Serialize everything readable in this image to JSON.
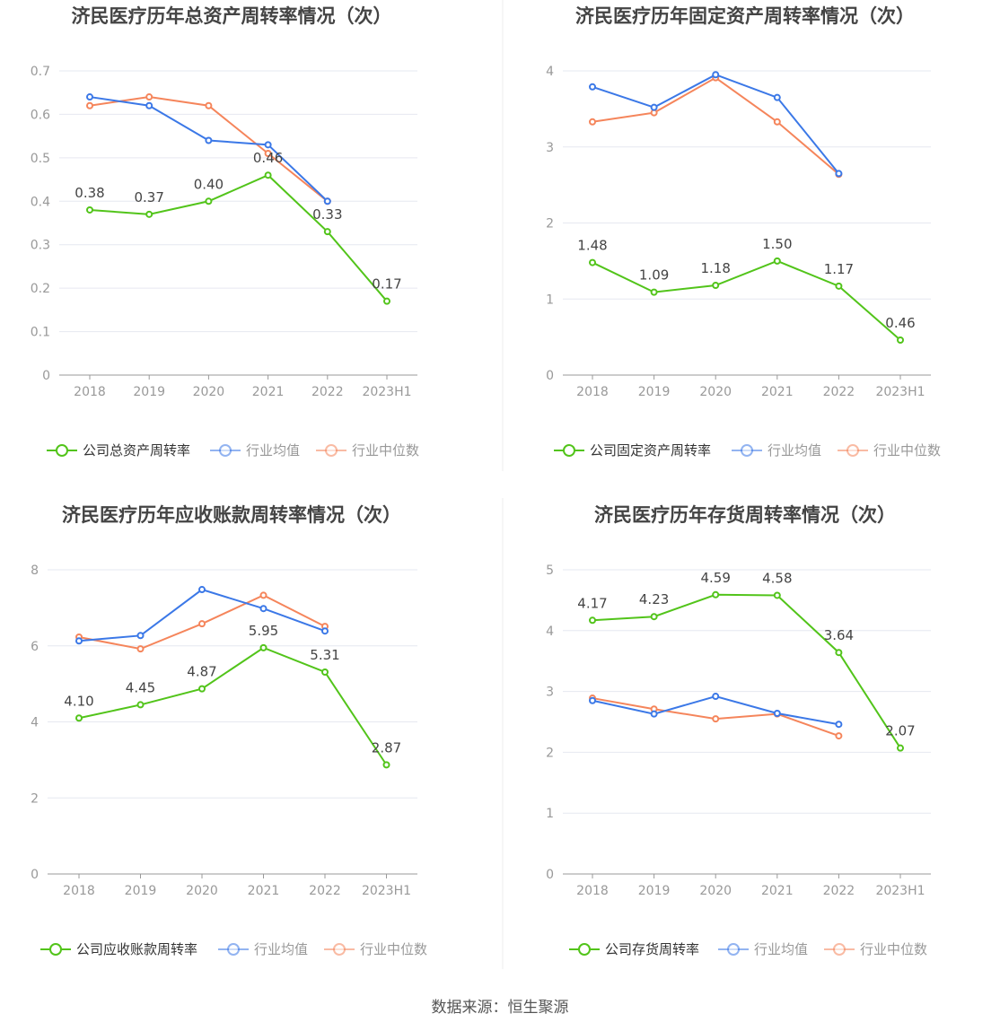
{
  "colors": {
    "company": "#52c41a",
    "avg": "#3b78e7",
    "median": "#f5855b"
  },
  "source": "数据来源：恒生聚源",
  "chart_data": [
    {
      "type": "line",
      "title": "济民医疗历年总资产周转率情况（次）",
      "categories": [
        "2018",
        "2019",
        "2020",
        "2021",
        "2022",
        "2023H1"
      ],
      "ylim": [
        0,
        0.7
      ],
      "yticks": [
        "0",
        "0.1",
        "0.2",
        "0.3",
        "0.4",
        "0.5",
        "0.6",
        "0.7"
      ],
      "legend_position": "bottom",
      "series": [
        {
          "name": "公司总资产周转率",
          "values": [
            0.38,
            0.37,
            0.4,
            0.46,
            0.33,
            0.17
          ],
          "labels": [
            "0.38",
            "0.37",
            "0.40",
            "0.46",
            "0.33",
            "0.17"
          ]
        },
        {
          "name": "行业均值",
          "values": [
            0.64,
            0.62,
            0.54,
            0.53,
            0.4,
            null
          ]
        },
        {
          "name": "行业中位数",
          "values": [
            0.62,
            0.64,
            0.62,
            0.51,
            0.4,
            null
          ]
        }
      ]
    },
    {
      "type": "line",
      "title": "济民医疗历年固定资产周转率情况（次）",
      "categories": [
        "2018",
        "2019",
        "2020",
        "2021",
        "2022",
        "2023H1"
      ],
      "ylim": [
        0,
        4
      ],
      "yticks": [
        "0",
        "1",
        "2",
        "3",
        "4"
      ],
      "legend_position": "bottom",
      "series": [
        {
          "name": "公司固定资产周转率",
          "values": [
            1.48,
            1.09,
            1.18,
            1.5,
            1.17,
            0.46
          ],
          "labels": [
            "1.48",
            "1.09",
            "1.18",
            "1.50",
            "1.17",
            "0.46"
          ]
        },
        {
          "name": "行业均值",
          "values": [
            3.79,
            3.52,
            3.95,
            3.65,
            2.65,
            null
          ]
        },
        {
          "name": "行业中位数",
          "values": [
            3.33,
            3.45,
            3.91,
            3.33,
            2.64,
            null
          ]
        }
      ]
    },
    {
      "type": "line",
      "title": "济民医疗历年应收账款周转率情况（次）",
      "categories": [
        "2018",
        "2019",
        "2020",
        "2021",
        "2022",
        "2023H1"
      ],
      "ylim": [
        0,
        8
      ],
      "yticks": [
        "0",
        "2",
        "4",
        "6",
        "8"
      ],
      "legend_position": "bottom",
      "series": [
        {
          "name": "公司应收账款周转率",
          "values": [
            4.1,
            4.45,
            4.87,
            5.95,
            5.31,
            2.87
          ],
          "labels": [
            "4.10",
            "4.45",
            "4.87",
            "5.95",
            "5.31",
            "2.87"
          ]
        },
        {
          "name": "行业均值",
          "values": [
            6.13,
            6.27,
            7.48,
            6.98,
            6.39,
            null
          ]
        },
        {
          "name": "行业中位数",
          "values": [
            6.23,
            5.92,
            6.58,
            7.33,
            6.51,
            null
          ]
        }
      ]
    },
    {
      "type": "line",
      "title": "济民医疗历年存货周转率情况（次）",
      "categories": [
        "2018",
        "2019",
        "2020",
        "2021",
        "2022",
        "2023H1"
      ],
      "ylim": [
        0,
        5
      ],
      "yticks": [
        "0",
        "1",
        "2",
        "3",
        "4",
        "5"
      ],
      "legend_position": "bottom",
      "series": [
        {
          "name": "公司存货周转率",
          "values": [
            4.17,
            4.23,
            4.59,
            4.58,
            3.64,
            2.07
          ],
          "labels": [
            "4.17",
            "4.23",
            "4.59",
            "4.58",
            "3.64",
            "2.07"
          ]
        },
        {
          "name": "行业均值",
          "values": [
            2.85,
            2.63,
            2.92,
            2.64,
            2.46,
            null
          ]
        },
        {
          "name": "行业中位数",
          "values": [
            2.89,
            2.71,
            2.55,
            2.63,
            2.27,
            null
          ]
        }
      ]
    }
  ]
}
